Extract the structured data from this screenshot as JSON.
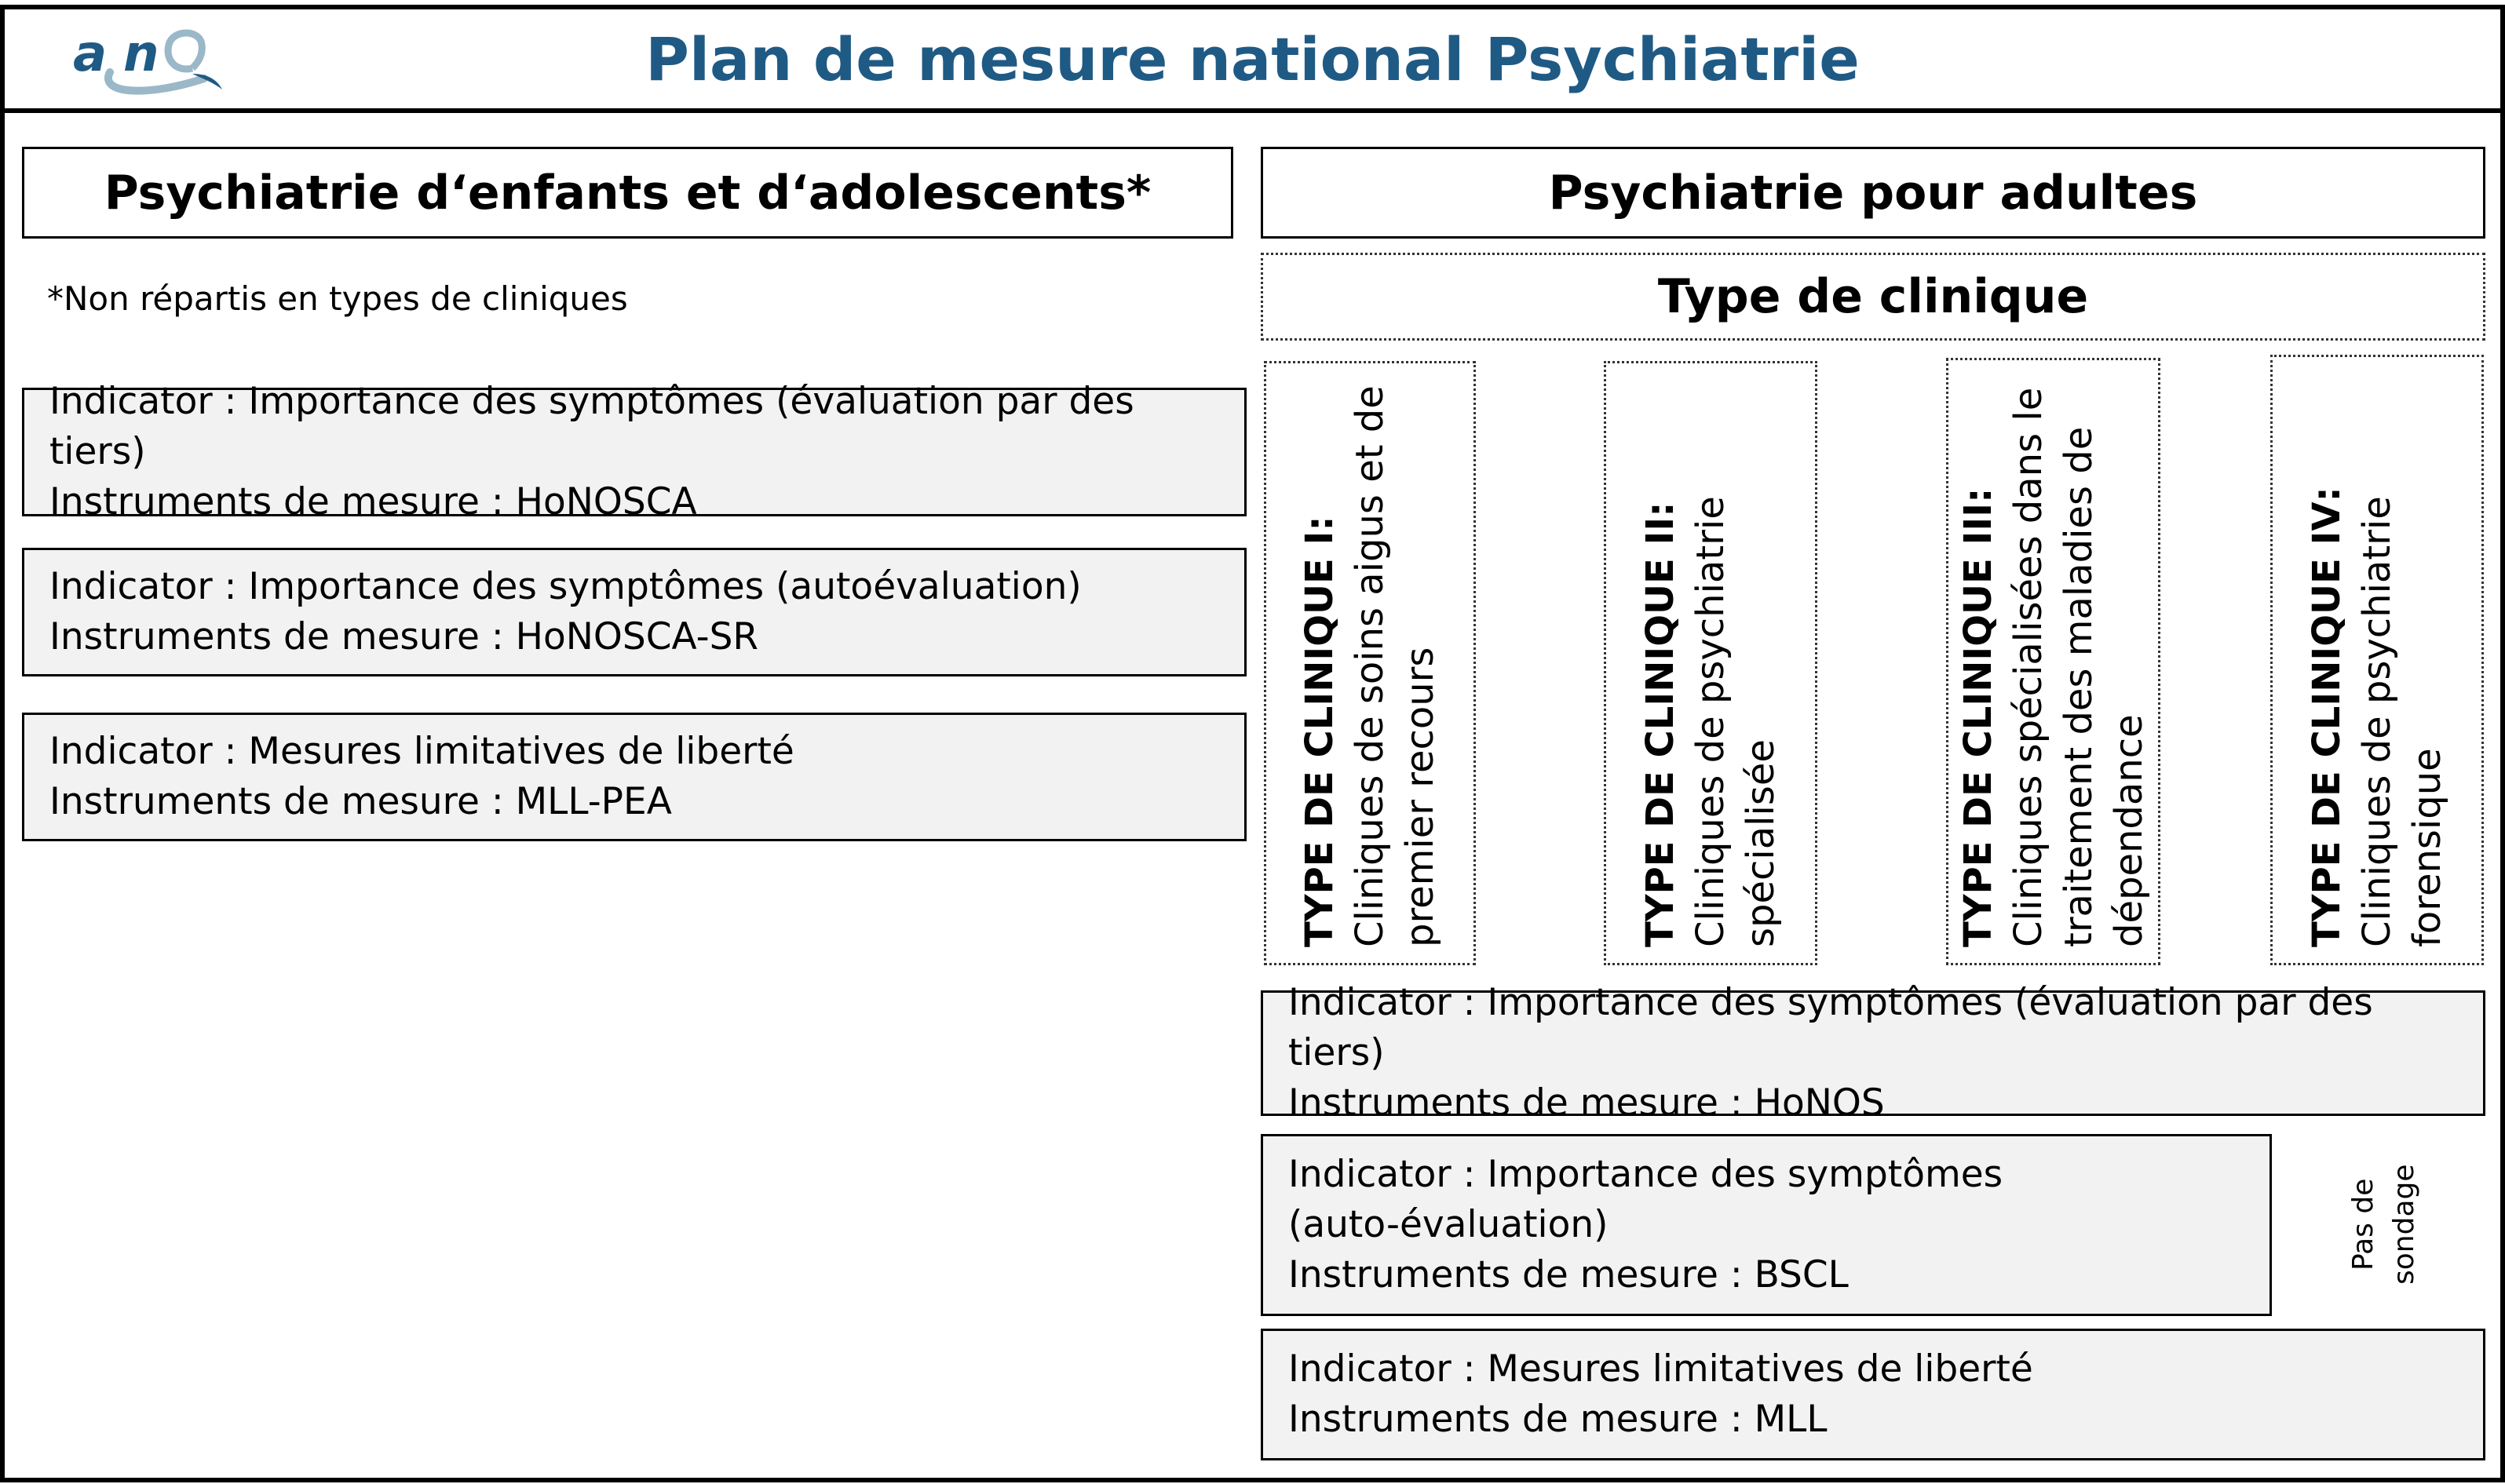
{
  "header": {
    "logo_text": "anq",
    "title": "Plan de mesure national Psychiatrie",
    "title_color": "#1f5a85"
  },
  "left": {
    "title": "Psychiatrie d‘enfants et d‘adolescents*",
    "note": "*Non répartis en types de cliniques",
    "indicators": [
      {
        "indicator": "Indicator : Importance des symptômes (évaluation par des tiers)",
        "instrument": "Instruments de mesure : HoNOSCA"
      },
      {
        "indicator": "Indicator : Importance des symptômes (autoévaluation)",
        "instrument": "Instruments de mesure : HoNOSCA-SR"
      },
      {
        "indicator": "Indicator : Mesures limitatives de liberté",
        "instrument": "Instruments de mesure : MLL-PEA"
      }
    ]
  },
  "right": {
    "title": "Psychiatrie pour adultes",
    "subtitle": "Type de clinique",
    "clinic_types": [
      {
        "label": "TYPE DE CLINIQUE I",
        "desc": "Cliniques de soins aigus et de premier recours"
      },
      {
        "label": "TYPE DE CLINIQUE II",
        "desc": "Cliniques de psychiatrie spécialisée"
      },
      {
        "label": "TYPE DE CLINIQUE III",
        "desc": "Cliniques spécialisées dans le traitement des maladies de dépendance"
      },
      {
        "label": "TYPE DE CLINIQUE IV",
        "desc": "Cliniques de psychiatrie forensique"
      }
    ],
    "indicators": [
      {
        "indicator": "Indicator : Importance des symptômes (évaluation par des tiers)",
        "instrument": "Instruments de mesure : HoNOS"
      },
      {
        "indicator": "Indicator : Importance des symptômes",
        "indicator2": "(auto-évaluation)",
        "instrument": "Instruments de mesure : BSCL"
      },
      {
        "indicator": "Indicator : Mesures limitatives de liberté",
        "instrument": "Instruments de mesure : MLL"
      }
    ],
    "no_survey": "Pas de sondage"
  }
}
